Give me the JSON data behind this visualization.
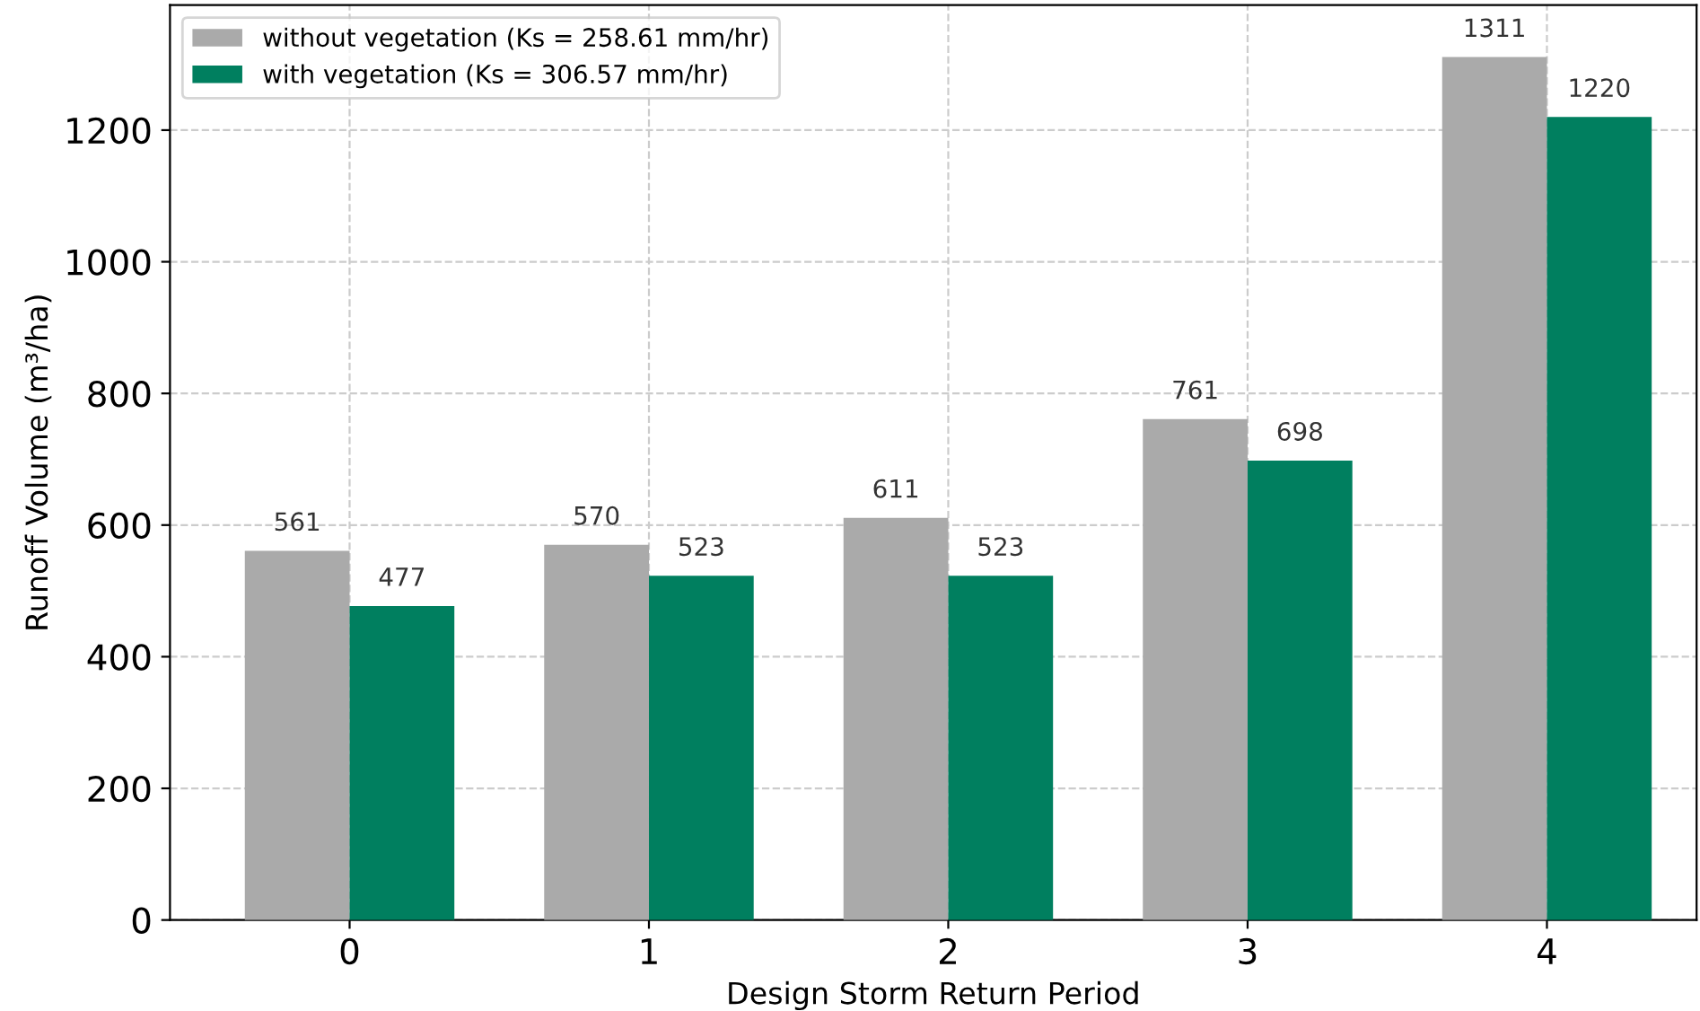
{
  "chart_data": {
    "type": "bar",
    "xlabel": "Design Storm Return Period",
    "ylabel": "Runoff Volume (m³/ha)",
    "categories": [
      "0",
      "1",
      "2",
      "3",
      "4"
    ],
    "series": [
      {
        "name": "without vegetation (Ks = 258.61 mm/hr)",
        "color": "#aaaaaa",
        "values": [
          561,
          570,
          611,
          761,
          1311
        ]
      },
      {
        "name": "with vegetation (Ks = 306.57 mm/hr)",
        "color": "#007f5f",
        "values": [
          477,
          523,
          523,
          698,
          1220
        ]
      }
    ],
    "ylim": [
      0,
      1390
    ],
    "yticks": [
      0,
      200,
      400,
      600,
      800,
      1000,
      1200
    ],
    "data_labels": true,
    "grid": true,
    "legend": "top left"
  }
}
